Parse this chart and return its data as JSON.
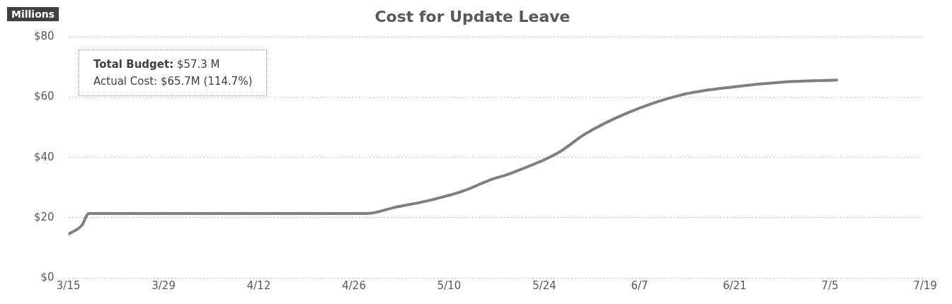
{
  "chart_data": {
    "type": "line",
    "title": "Cost for Update Leave",
    "ylabel": "Millions",
    "annotations": [
      "Total Budget: $57.3 M",
      "Actual Cost: $65.7M (114.7%)"
    ],
    "x": [
      "--03-15",
      "--03-17",
      "--03-18",
      "--04-28",
      "--05-02",
      "--05-07",
      "--05-12",
      "--05-16",
      "--05-19",
      "--05-26",
      "--05-30",
      "--06-05",
      "--06-13",
      "--06-21",
      "--06-28",
      "--07-06"
    ],
    "series": [
      {
        "color": "#7f7f7f",
        "values": [
          14.5,
          17.5,
          21.4,
          21.4,
          23.4,
          25.7,
          28.8,
          32.5,
          34.7,
          41.5,
          47.8,
          54.6,
          60.7,
          63.5,
          65,
          65.7
        ]
      }
    ],
    "xlim": [
      "--03-15",
      "--07-19"
    ],
    "xticks": [
      {
        "value": "--03-15",
        "label": "3/15"
      },
      {
        "value": "--03-29",
        "label": "3/29"
      },
      {
        "value": "--04-12",
        "label": "4/12"
      },
      {
        "value": "--04-26",
        "label": "4/26"
      },
      {
        "value": "--05-10",
        "label": "5/10"
      },
      {
        "value": "--05-24",
        "label": "5/24"
      },
      {
        "value": "--06-07",
        "label": "6/7"
      },
      {
        "value": "--06-21",
        "label": "6/21"
      },
      {
        "value": "--07-05",
        "label": "7/5"
      },
      {
        "value": "--07-19",
        "label": "7/19"
      }
    ],
    "ylim": [
      0,
      80
    ],
    "yticks": [
      {
        "value": 0,
        "label": "$0"
      },
      {
        "value": 20,
        "label": "$20"
      },
      {
        "value": 40,
        "label": "$40"
      },
      {
        "value": 60,
        "label": "$60"
      },
      {
        "value": 80,
        "label": "$80"
      }
    ],
    "grid": "y",
    "legend": false,
    "marker": "none",
    "line_style": "solid"
  }
}
